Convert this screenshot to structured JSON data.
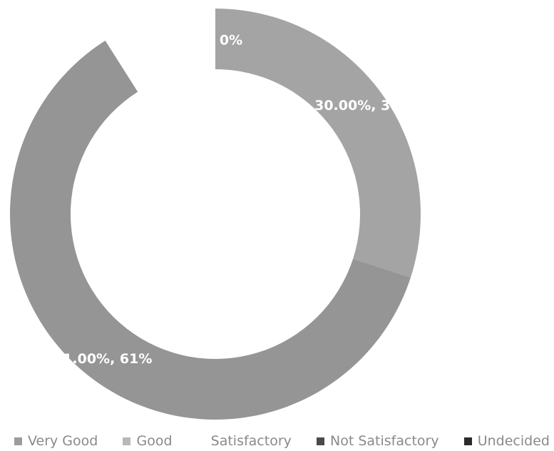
{
  "chart_data": {
    "type": "pie",
    "categories": [
      "Very Good",
      "Good",
      "Satisfactory",
      "Not Satisfactory",
      "Undecided"
    ],
    "values": [
      30,
      61,
      9,
      0,
      0
    ],
    "data_labels": [
      "30.00%, 30%",
      "61.00%, 61%",
      "",
      "",
      ""
    ],
    "top_label": "0%",
    "colors": [
      "#a4a4a4",
      "#959595",
      "#ffffff",
      "#4a4a4a",
      "#2b2b2b"
    ],
    "legend_position": "bottom",
    "donut": true
  },
  "legend": [
    {
      "label": "Very Good",
      "color": "#9c9c9c"
    },
    {
      "label": "Good",
      "color": "#b8b8b8"
    },
    {
      "label": "Satisfactory",
      "color": "#ffffff"
    },
    {
      "label": "Not Satisfactory",
      "color": "#4a4a4a"
    },
    {
      "label": "Undecided",
      "color": "#2b2b2b"
    }
  ]
}
